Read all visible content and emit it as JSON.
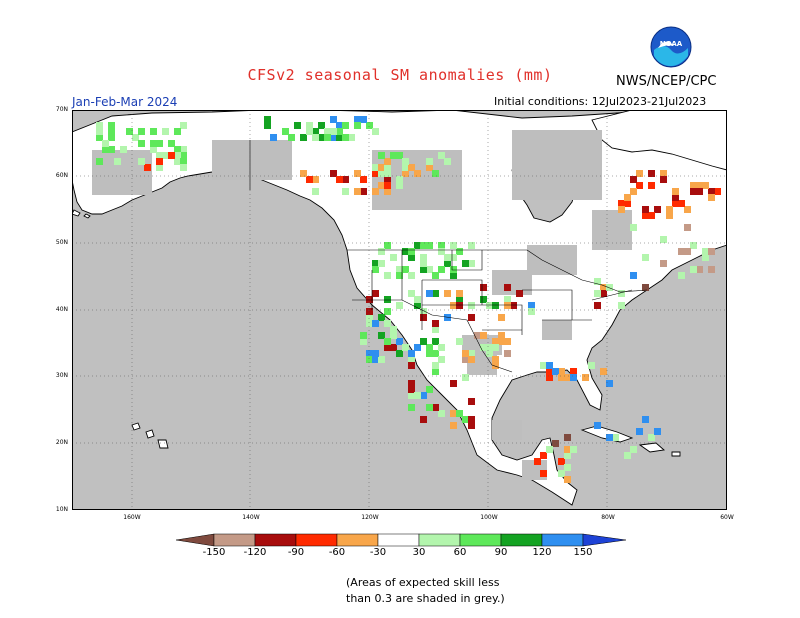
{
  "title": "CFSv2 seasonal SM anomalies (mm)",
  "source": "NWS/NCEP/CPC",
  "season": "Jan-Feb-Mar 2024",
  "initial_conditions": "Initial conditions: 12Jul2023-21Jul2023",
  "logo_label": "NOAA",
  "latitude_labels": [
    "70N",
    "60N",
    "50N",
    "40N",
    "30N",
    "20N",
    "10N"
  ],
  "longitude_labels": [
    "160W",
    "140W",
    "120W",
    "100W",
    "80W",
    "60W"
  ],
  "legend": {
    "labels": [
      "-150",
      "-120",
      "-90",
      "-60",
      "-30",
      "30",
      "60",
      "90",
      "120",
      "150"
    ],
    "colors": [
      "#7f4a3e",
      "#c49a87",
      "#a80d0d",
      "#ff2a00",
      "#f8a64a",
      "#ffffff",
      "#b3f5ad",
      "#5ee85a",
      "#14a322",
      "#2f8ff0",
      "#1e43d6"
    ]
  },
  "note_line1": "(Areas of expected skill less",
  "note_line2": "than 0.3 are shaded in grey.)",
  "colors": {
    "ocean": "#c0c0c0",
    "skill_grey": "#bebebe",
    "land": "#ffffff",
    "title": "#e0302a",
    "season": "#1b3fb4"
  }
}
